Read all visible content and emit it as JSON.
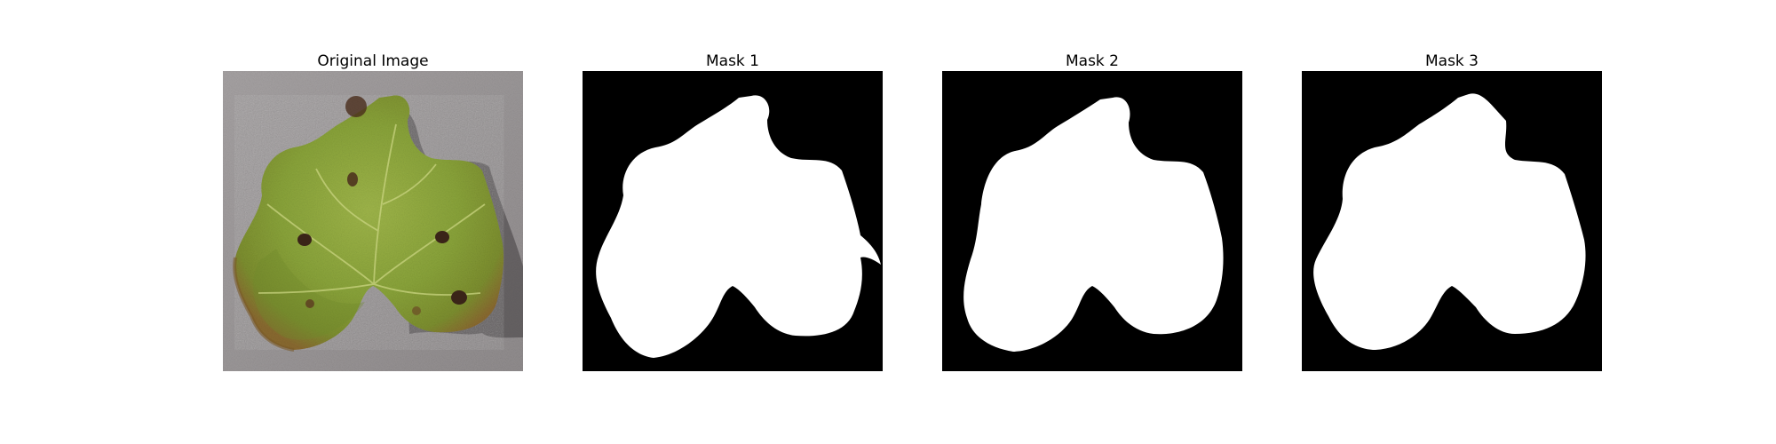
{
  "figure": {
    "panels": [
      {
        "title": "Original Image"
      },
      {
        "title": "Mask 1"
      },
      {
        "title": "Mask 2"
      },
      {
        "title": "Mask 3"
      }
    ]
  },
  "colors": {
    "background": "#ffffff",
    "mask_background": "#000000",
    "mask_foreground": "#ffffff",
    "leaf_green": "#8aa43a",
    "ground_gray": "#9a9696"
  }
}
